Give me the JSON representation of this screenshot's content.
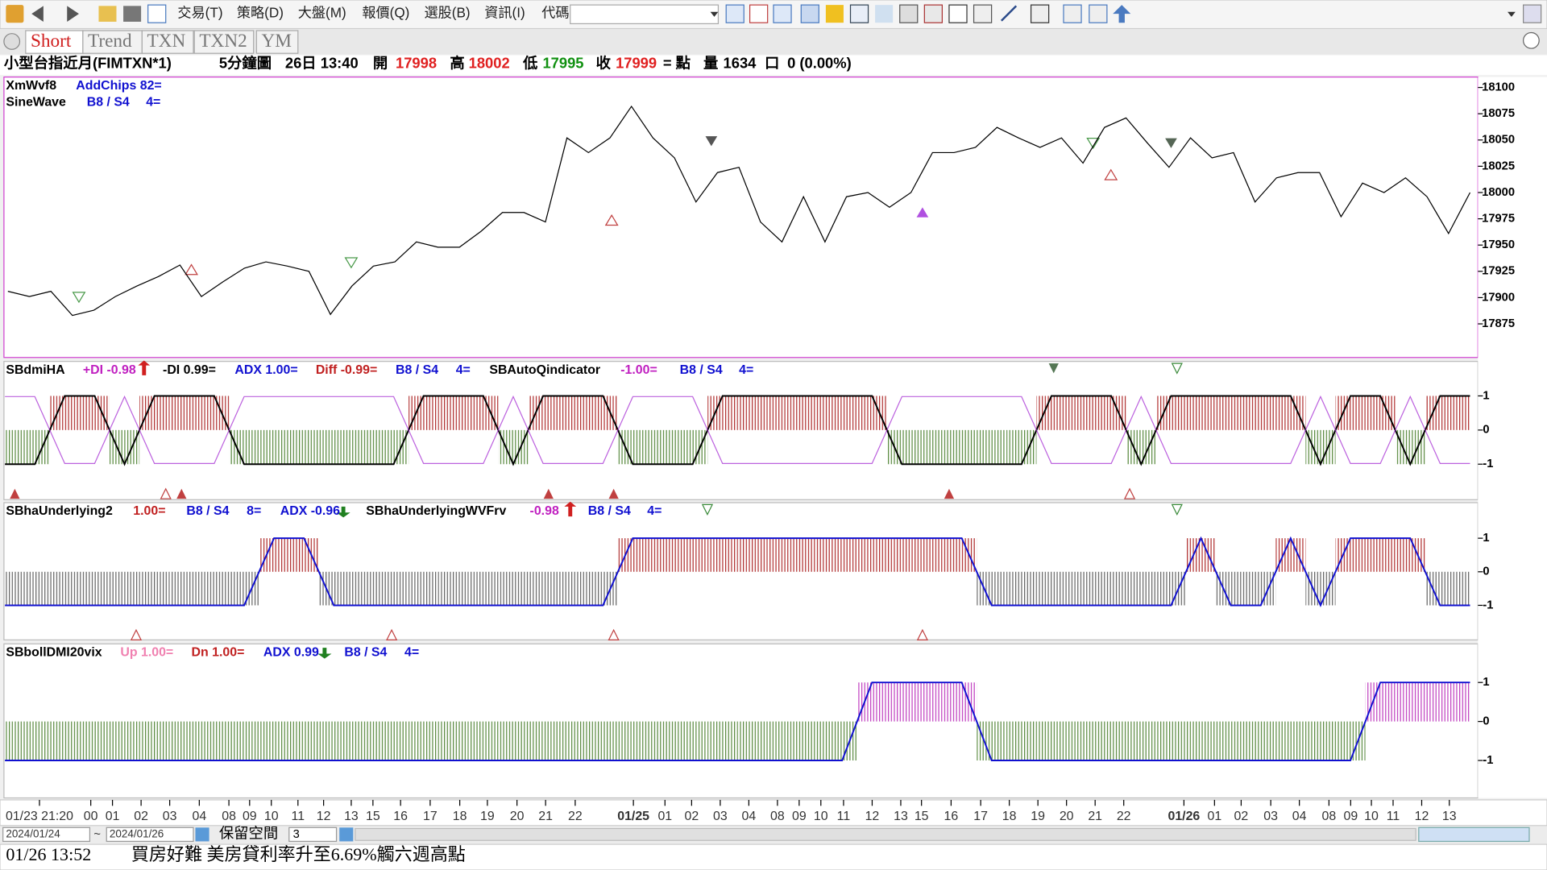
{
  "toolbar": {
    "menus": [
      "交易(T)",
      "策略(D)",
      "大盤(M)",
      "報價(Q)",
      "選股(B)",
      "資訊(I)",
      "代碼"
    ]
  },
  "tabs": [
    "Short",
    "Trend",
    "TXN",
    "TXN2",
    "YM"
  ],
  "quote": {
    "symbol": "小型台指近月(FIMTXN*1)",
    "interval": "5分鐘圖",
    "time": "26日 13:40",
    "open_label": "開",
    "open": 17998,
    "high_label": "高",
    "high": 18002,
    "low_label": "低",
    "low": 17995,
    "close_label": "收",
    "close": 17999,
    "close_unit": "= 點",
    "volume_label": "量",
    "volume": 1634,
    "volume_unit": "口",
    "change": "0 (0.00%)"
  },
  "price_panel": {
    "labels": [
      "XmWvf8",
      "AddChips 82=",
      "SineWave",
      "B8 / S4",
      "4="
    ],
    "ylim": [
      17843,
      18109
    ],
    "yticks": [
      17875,
      17900,
      17925,
      17950,
      17975,
      18000,
      18025,
      18050,
      18075,
      18100
    ],
    "values": [
      17906,
      17901,
      17906,
      17883,
      17888,
      17901,
      17911,
      17920,
      17931,
      17901,
      17915,
      17928,
      17934,
      17930,
      17925,
      17884,
      17911,
      17930,
      17934,
      17953,
      17948,
      17948,
      17963,
      17981,
      17981,
      17972,
      18052,
      18038,
      18052,
      18082,
      18052,
      18033,
      17991,
      18019,
      18024,
      17972,
      17953,
      17996,
      17953,
      17996,
      18000,
      17986,
      18000,
      18038,
      18038,
      18043,
      18062,
      18052,
      18043,
      18052,
      18028,
      18062,
      18071,
      18047,
      18024,
      18052,
      18033,
      18038,
      17991,
      18014,
      18019,
      18019,
      17977,
      18009,
      18000,
      18014,
      17996,
      17961,
      18000
    ]
  },
  "panels": [
    {
      "labels": [
        "SBdmiHA",
        "+DI -0.98",
        "-DI 0.99=",
        "ADX 1.00=",
        "Diff -0.99=",
        "B8 / S4",
        "4=",
        "SBAutoQindicator",
        "-1.00=",
        "B8 / S4",
        "4="
      ],
      "ylim": [
        -2.04,
        2.01
      ],
      "yticks": [
        1,
        0,
        -1
      ],
      "values": [
        -1,
        -1,
        1,
        1,
        -1,
        1,
        1,
        1,
        -1,
        -1,
        -1,
        -1,
        -1,
        -1,
        1,
        1,
        1,
        -1,
        1,
        1,
        1,
        -1,
        -1,
        -1,
        1,
        1,
        1,
        1,
        1,
        1,
        -1,
        -1,
        -1,
        -1,
        -1,
        1,
        1,
        1,
        -1,
        1,
        1,
        1,
        1,
        1,
        -1,
        1,
        1,
        -1,
        1,
        1
      ]
    },
    {
      "labels": [
        "SBhaUnderlying2",
        "1.00=",
        "B8 / S4",
        "8=",
        "ADX -0.96",
        "SBhaUnderlyingWVFrv",
        "-0.98",
        "B8 / S4",
        "4="
      ],
      "ylim": [
        -2.03,
        2.06
      ],
      "yticks": [
        1,
        0,
        -1
      ],
      "values": [
        -1,
        -1,
        -1,
        -1,
        -1,
        -1,
        -1,
        -1,
        -1,
        1,
        1,
        -1,
        -1,
        -1,
        -1,
        -1,
        -1,
        -1,
        -1,
        -1,
        -1,
        1,
        1,
        1,
        1,
        1,
        1,
        1,
        1,
        1,
        1,
        1,
        1,
        -1,
        -1,
        -1,
        -1,
        -1,
        -1,
        -1,
        1,
        -1,
        -1,
        1,
        -1,
        1,
        1,
        1,
        -1,
        -1
      ]
    },
    {
      "labels": [
        "SBbollDMI20vix",
        "Up 1.00=",
        "Dn 1.00=",
        "ADX 0.99",
        "B8 / S4",
        "4="
      ],
      "ylim": [
        -1.96,
        1.99
      ],
      "yticks": [
        1,
        0,
        -1
      ],
      "values": [
        -1,
        -1,
        -1,
        -1,
        -1,
        -1,
        -1,
        -1,
        -1,
        -1,
        -1,
        -1,
        -1,
        -1,
        -1,
        -1,
        -1,
        -1,
        -1,
        -1,
        -1,
        -1,
        -1,
        -1,
        -1,
        -1,
        -1,
        -1,
        -1,
        1,
        1,
        1,
        1,
        -1,
        -1,
        -1,
        -1,
        -1,
        -1,
        -1,
        -1,
        -1,
        -1,
        -1,
        -1,
        -1,
        1,
        1,
        1,
        1
      ]
    }
  ],
  "x_axis": {
    "labels": [
      "01/23 21:20",
      "00",
      "01",
      "02",
      "03",
      "04",
      "08",
      "09",
      "10",
      "11",
      "12",
      "13",
      "15",
      "16",
      "17",
      "18",
      "19",
      "20",
      "21",
      "22",
      "01/25",
      "01",
      "02",
      "03",
      "04",
      "08",
      "09",
      "10",
      "11",
      "12",
      "13",
      "15",
      "16",
      "17",
      "18",
      "19",
      "20",
      "21",
      "22",
      "01/26",
      "01",
      "02",
      "03",
      "04",
      "08",
      "09",
      "10",
      "11",
      "12",
      "13"
    ]
  },
  "range": {
    "from": "2024/01/24",
    "sep": "~",
    "to": "2024/01/26",
    "reserve_label": "保留空間",
    "reserve": 3
  },
  "news": {
    "time": "01/26 13:52",
    "headline": "買房好難 美房貸利率升至6.69%觸六週高點"
  }
}
